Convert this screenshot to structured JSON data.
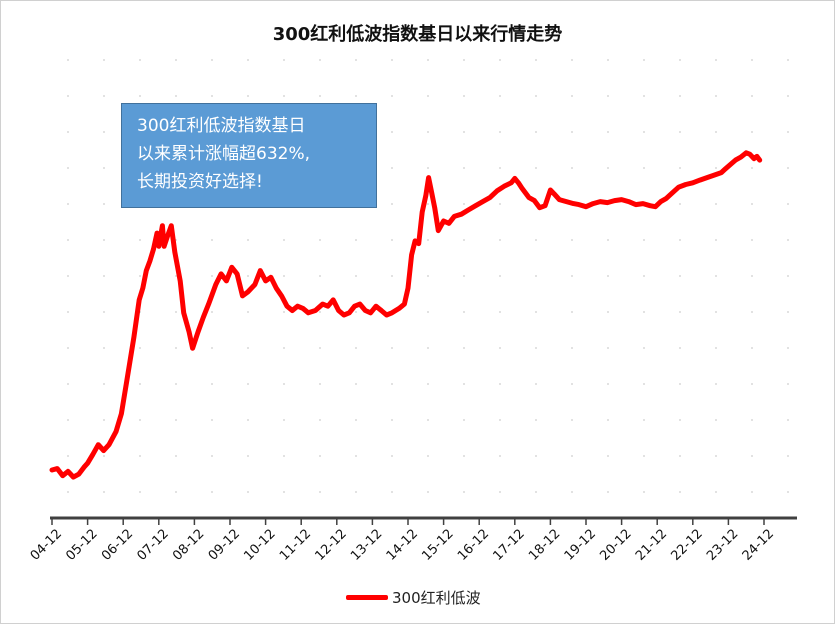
{
  "chart_data": {
    "type": "line",
    "title": "300红利低波指数基日以来行情走势",
    "x_ticks": [
      "04-12",
      "05-12",
      "06-12",
      "07-12",
      "08-12",
      "09-12",
      "10-12",
      "11-12",
      "12-12",
      "13-12",
      "14-12",
      "15-12",
      "16-12",
      "17-12",
      "18-12",
      "19-12",
      "20-12",
      "21-12",
      "22-12",
      "23-12",
      "24-12"
    ],
    "series": [
      {
        "name": "300红利低波",
        "color": "#ff0000",
        "points": [
          [
            0.0,
            1000
          ],
          [
            0.15,
            1010
          ],
          [
            0.3,
            960
          ],
          [
            0.45,
            990
          ],
          [
            0.6,
            950
          ],
          [
            0.75,
            970
          ],
          [
            0.9,
            1020
          ],
          [
            1.0,
            1050
          ],
          [
            1.15,
            1120
          ],
          [
            1.3,
            1200
          ],
          [
            1.45,
            1150
          ],
          [
            1.6,
            1200
          ],
          [
            1.8,
            1320
          ],
          [
            1.95,
            1500
          ],
          [
            2.1,
            1900
          ],
          [
            2.3,
            2600
          ],
          [
            2.45,
            3400
          ],
          [
            2.55,
            3700
          ],
          [
            2.65,
            4200
          ],
          [
            2.75,
            4500
          ],
          [
            2.85,
            4900
          ],
          [
            2.95,
            5500
          ],
          [
            3.0,
            5000
          ],
          [
            3.1,
            5800
          ],
          [
            3.15,
            5000
          ],
          [
            3.25,
            5400
          ],
          [
            3.35,
            5800
          ],
          [
            3.45,
            4800
          ],
          [
            3.6,
            3900
          ],
          [
            3.7,
            3100
          ],
          [
            3.85,
            2700
          ],
          [
            3.95,
            2400
          ],
          [
            4.1,
            2700
          ],
          [
            4.25,
            3000
          ],
          [
            4.4,
            3300
          ],
          [
            4.6,
            3800
          ],
          [
            4.75,
            4100
          ],
          [
            4.9,
            3900
          ],
          [
            5.05,
            4300
          ],
          [
            5.2,
            4100
          ],
          [
            5.35,
            3500
          ],
          [
            5.5,
            3600
          ],
          [
            5.7,
            3800
          ],
          [
            5.85,
            4200
          ],
          [
            6.0,
            3900
          ],
          [
            6.15,
            4000
          ],
          [
            6.3,
            3700
          ],
          [
            6.45,
            3500
          ],
          [
            6.6,
            3250
          ],
          [
            6.75,
            3150
          ],
          [
            6.9,
            3250
          ],
          [
            7.05,
            3200
          ],
          [
            7.2,
            3100
          ],
          [
            7.4,
            3150
          ],
          [
            7.6,
            3300
          ],
          [
            7.75,
            3250
          ],
          [
            7.9,
            3400
          ],
          [
            8.05,
            3150
          ],
          [
            8.2,
            3050
          ],
          [
            8.35,
            3100
          ],
          [
            8.5,
            3250
          ],
          [
            8.65,
            3300
          ],
          [
            8.8,
            3150
          ],
          [
            8.95,
            3100
          ],
          [
            9.1,
            3250
          ],
          [
            9.25,
            3150
          ],
          [
            9.4,
            3050
          ],
          [
            9.55,
            3100
          ],
          [
            9.75,
            3200
          ],
          [
            9.9,
            3300
          ],
          [
            10.0,
            3700
          ],
          [
            10.1,
            4700
          ],
          [
            10.2,
            5200
          ],
          [
            10.3,
            5100
          ],
          [
            10.4,
            6400
          ],
          [
            10.5,
            7200
          ],
          [
            10.58,
            8200
          ],
          [
            10.66,
            7400
          ],
          [
            10.75,
            6600
          ],
          [
            10.85,
            5600
          ],
          [
            11.0,
            6000
          ],
          [
            11.15,
            5900
          ],
          [
            11.3,
            6200
          ],
          [
            11.5,
            6300
          ],
          [
            11.7,
            6500
          ],
          [
            11.9,
            6700
          ],
          [
            12.1,
            6900
          ],
          [
            12.3,
            7100
          ],
          [
            12.5,
            7450
          ],
          [
            12.7,
            7700
          ],
          [
            12.9,
            7900
          ],
          [
            13.0,
            8150
          ],
          [
            13.1,
            7900
          ],
          [
            13.2,
            7600
          ],
          [
            13.4,
            7100
          ],
          [
            13.55,
            6950
          ],
          [
            13.7,
            6600
          ],
          [
            13.85,
            6700
          ],
          [
            14.0,
            7500
          ],
          [
            14.1,
            7300
          ],
          [
            14.25,
            7000
          ],
          [
            14.45,
            6900
          ],
          [
            14.65,
            6800
          ],
          [
            14.8,
            6750
          ],
          [
            15.0,
            6650
          ],
          [
            15.2,
            6800
          ],
          [
            15.4,
            6900
          ],
          [
            15.6,
            6850
          ],
          [
            15.8,
            6950
          ],
          [
            16.0,
            7000
          ],
          [
            16.2,
            6900
          ],
          [
            16.4,
            6750
          ],
          [
            16.6,
            6800
          ],
          [
            16.8,
            6700
          ],
          [
            16.95,
            6650
          ],
          [
            17.1,
            6900
          ],
          [
            17.25,
            7050
          ],
          [
            17.4,
            7300
          ],
          [
            17.6,
            7650
          ],
          [
            17.8,
            7800
          ],
          [
            18.0,
            7900
          ],
          [
            18.2,
            8050
          ],
          [
            18.4,
            8200
          ],
          [
            18.6,
            8350
          ],
          [
            18.8,
            8500
          ],
          [
            18.9,
            8700
          ],
          [
            19.0,
            8900
          ],
          [
            19.1,
            9100
          ],
          [
            19.2,
            9300
          ],
          [
            19.35,
            9500
          ],
          [
            19.5,
            9800
          ],
          [
            19.6,
            9700
          ],
          [
            19.72,
            9400
          ],
          [
            19.8,
            9550
          ],
          [
            19.88,
            9300
          ]
        ]
      }
    ],
    "ylim": [
      -200,
      12000
    ],
    "log_y": true,
    "legend": {
      "position": "bottom",
      "label": "300红利低波"
    },
    "annotation": {
      "lines": [
        "300红利低波指数基日",
        "以来累计涨幅超632%,",
        "长期投资好选择!"
      ],
      "background": "#5b9bd5"
    },
    "grid": "dotted"
  }
}
